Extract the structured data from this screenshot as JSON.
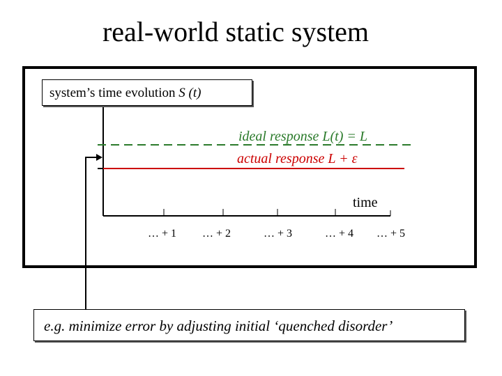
{
  "title": "real-world static system",
  "evolution_box": {
    "label": "system’s time evolution",
    "symbol": "S (t)"
  },
  "ideal_response": {
    "label": "ideal response",
    "formula": "L(t) = L",
    "color": "#2a7a2a"
  },
  "actual_response": {
    "label": "actual response",
    "formula": "L + ε",
    "color": "#cc0000"
  },
  "axis": {
    "label": "time",
    "ticks": [
      "… + 1",
      "… + 2",
      "… + 3",
      "… + 4",
      "… + 5"
    ]
  },
  "note": "e.g.  minimize error by adjusting initial ‘quenched disorder’"
}
